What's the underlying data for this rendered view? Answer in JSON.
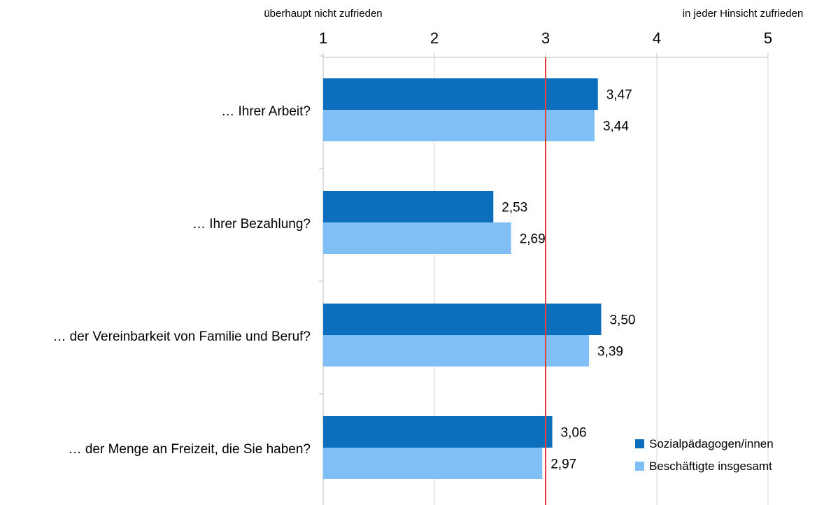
{
  "chart_data": {
    "type": "bar",
    "orientation": "horizontal",
    "scale_labels": {
      "low": "überhaupt nicht zufrieden",
      "high": "in jeder Hinsicht zufrieden"
    },
    "xlim": [
      1,
      5
    ],
    "xticks": [
      "1",
      "2",
      "3",
      "4",
      "5"
    ],
    "reference_line": {
      "value": 3,
      "color": "#e0403a"
    },
    "categories": [
      "… Ihrer Arbeit?",
      "…  Ihrer Bezahlung?",
      "… der Vereinbarkeit von Familie und Beruf?",
      "… der Menge an Freizeit, die Sie haben?"
    ],
    "series": [
      {
        "name": "Sozialpädagogen/innen",
        "color": "#0b6fbd",
        "values": [
          3.47,
          2.53,
          3.5,
          3.06
        ],
        "labels": [
          "3,47",
          "2,53",
          "3,50",
          "3,06"
        ]
      },
      {
        "name": "Beschäftigte insgesamt",
        "color": "#80bff5",
        "values": [
          3.44,
          2.69,
          3.39,
          2.97
        ],
        "labels": [
          "3,44",
          "2,69",
          "3,39",
          "2,97"
        ]
      }
    ],
    "legend_position": "bottom-right",
    "grid": true
  }
}
